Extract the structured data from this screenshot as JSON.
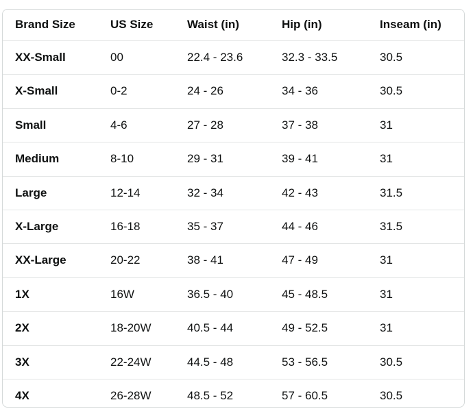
{
  "size_chart": {
    "columns": [
      "Brand Size",
      "US Size",
      "Waist (in)",
      "Hip (in)",
      "Inseam (in)"
    ],
    "rows": [
      [
        "XX-Small",
        "00",
        "22.4 - 23.6",
        "32.3 - 33.5",
        "30.5"
      ],
      [
        "X-Small",
        "0-2",
        "24 - 26",
        "34 - 36",
        "30.5"
      ],
      [
        "Small",
        "4-6",
        "27 - 28",
        "37 - 38",
        "31"
      ],
      [
        "Medium",
        "8-10",
        "29 - 31",
        "39 - 41",
        "31"
      ],
      [
        "Large",
        "12-14",
        "32 - 34",
        "42 - 43",
        "31.5"
      ],
      [
        "X-Large",
        "16-18",
        "35 - 37",
        "44 - 46",
        "31.5"
      ],
      [
        "XX-Large",
        "20-22",
        "38 - 41",
        "47 - 49",
        "31"
      ],
      [
        "1X",
        "16W",
        "36.5 - 40",
        "45 - 48.5",
        "31"
      ],
      [
        "2X",
        "18-20W",
        "40.5 - 44",
        "49 - 52.5",
        "31"
      ],
      [
        "3X",
        "22-24W",
        "44.5 - 48",
        "53 - 56.5",
        "30.5"
      ],
      [
        "4X",
        "26-28W",
        "48.5 - 52",
        "57 - 60.5",
        "30.5"
      ]
    ],
    "colors": {
      "text": "#0F1111",
      "card_border": "#D5D9D9",
      "row_divider": "#E3E5E5",
      "background": "#FFFFFF"
    }
  }
}
